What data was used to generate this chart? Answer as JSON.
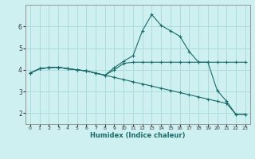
{
  "xlabel": "Humidex (Indice chaleur)",
  "bg_color": "#cff0f0",
  "grid_color": "#a8d8d8",
  "line_color": "#1a6b6b",
  "xlim": [
    -0.5,
    23.5
  ],
  "ylim": [
    1.5,
    7.0
  ],
  "yticks": [
    2,
    3,
    4,
    5,
    6
  ],
  "xticks": [
    0,
    1,
    2,
    3,
    4,
    5,
    6,
    7,
    8,
    9,
    10,
    11,
    12,
    13,
    14,
    15,
    16,
    17,
    18,
    19,
    20,
    21,
    22,
    23
  ],
  "line1_x": [
    0,
    1,
    2,
    3,
    4,
    5,
    6,
    7,
    8,
    9,
    10,
    11,
    12,
    13,
    14,
    15,
    16,
    17,
    18,
    19,
    20,
    21,
    22,
    23
  ],
  "line1_y": [
    3.85,
    4.05,
    4.1,
    4.12,
    4.05,
    4.0,
    3.95,
    3.85,
    3.75,
    4.1,
    4.4,
    4.65,
    5.8,
    6.55,
    6.05,
    5.8,
    5.55,
    4.85,
    4.35,
    4.35,
    3.05,
    2.55,
    1.95,
    1.95
  ],
  "line2_x": [
    0,
    1,
    2,
    3,
    4,
    5,
    6,
    7,
    8,
    9,
    10,
    11,
    12,
    13,
    14,
    15,
    16,
    17,
    18,
    19,
    20,
    21,
    22,
    23
  ],
  "line2_y": [
    3.85,
    4.05,
    4.1,
    4.12,
    4.05,
    4.0,
    3.95,
    3.85,
    3.75,
    4.0,
    4.3,
    4.35,
    4.35,
    4.35,
    4.35,
    4.35,
    4.35,
    4.35,
    4.35,
    4.35,
    4.35,
    4.35,
    4.35,
    4.35
  ],
  "line3_x": [
    0,
    1,
    2,
    3,
    4,
    5,
    6,
    7,
    8,
    9,
    10,
    11,
    12,
    13,
    14,
    15,
    16,
    17,
    18,
    19,
    20,
    21,
    22,
    23
  ],
  "line3_y": [
    3.85,
    4.05,
    4.1,
    4.12,
    4.05,
    4.0,
    3.95,
    3.85,
    3.75,
    3.65,
    3.55,
    3.45,
    3.35,
    3.25,
    3.15,
    3.05,
    2.95,
    2.85,
    2.75,
    2.65,
    2.55,
    2.45,
    1.95,
    1.95
  ]
}
